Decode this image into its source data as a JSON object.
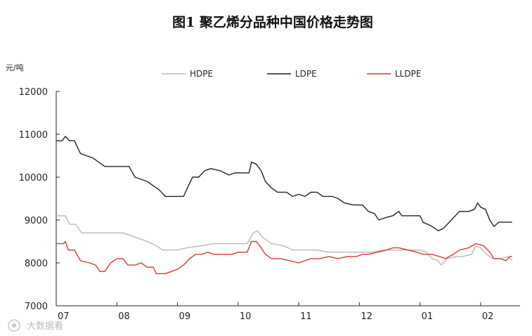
{
  "chart_data": {
    "type": "line",
    "title": "图1    聚乙烯分品种中国价格走势图",
    "ylabel": "元/吨",
    "xlabel": "",
    "ylim": [
      7000,
      12000
    ],
    "yticks": [
      7000,
      8000,
      9000,
      10000,
      11000,
      12000
    ],
    "xlim": [
      0,
      7.65
    ],
    "xticks": [
      {
        "x": 0,
        "label": "07"
      },
      {
        "x": 1,
        "label": "08"
      },
      {
        "x": 2,
        "label": "09"
      },
      {
        "x": 3,
        "label": "10"
      },
      {
        "x": 4,
        "label": "11"
      },
      {
        "x": 5,
        "label": "12"
      },
      {
        "x": 6,
        "label": "01"
      },
      {
        "x": 7,
        "label": "02"
      }
    ],
    "legend_position": "top",
    "watermark": "大数据看",
    "series": [
      {
        "name": "HDPE",
        "color": "#b8b8b8",
        "points": [
          [
            0.0,
            9100
          ],
          [
            0.15,
            9100
          ],
          [
            0.22,
            8900
          ],
          [
            0.32,
            8900
          ],
          [
            0.42,
            8700
          ],
          [
            0.6,
            8700
          ],
          [
            0.9,
            8700
          ],
          [
            1.1,
            8700
          ],
          [
            1.3,
            8600
          ],
          [
            1.5,
            8500
          ],
          [
            1.65,
            8400
          ],
          [
            1.75,
            8300
          ],
          [
            2.0,
            8300
          ],
          [
            2.15,
            8350
          ],
          [
            2.4,
            8400
          ],
          [
            2.6,
            8450
          ],
          [
            2.8,
            8450
          ],
          [
            3.0,
            8450
          ],
          [
            3.15,
            8450
          ],
          [
            3.25,
            8700
          ],
          [
            3.32,
            8750
          ],
          [
            3.4,
            8600
          ],
          [
            3.55,
            8450
          ],
          [
            3.75,
            8400
          ],
          [
            3.9,
            8300
          ],
          [
            4.1,
            8300
          ],
          [
            4.3,
            8300
          ],
          [
            4.5,
            8250
          ],
          [
            4.8,
            8250
          ],
          [
            5.0,
            8250
          ],
          [
            5.2,
            8250
          ],
          [
            5.4,
            8300
          ],
          [
            5.6,
            8300
          ],
          [
            5.8,
            8300
          ],
          [
            6.0,
            8300
          ],
          [
            6.1,
            8250
          ],
          [
            6.2,
            8100
          ],
          [
            6.3,
            8050
          ],
          [
            6.35,
            7950
          ],
          [
            6.45,
            8100
          ],
          [
            6.6,
            8150
          ],
          [
            6.7,
            8150
          ],
          [
            6.85,
            8200
          ],
          [
            6.92,
            8400
          ],
          [
            7.0,
            8350
          ],
          [
            7.1,
            8200
          ],
          [
            7.2,
            8100
          ],
          [
            7.35,
            8100
          ],
          [
            7.45,
            8150
          ],
          [
            7.52,
            8050
          ]
        ]
      },
      {
        "name": "LDPE",
        "color": "#222222",
        "points": [
          [
            0.0,
            10850
          ],
          [
            0.1,
            10850
          ],
          [
            0.15,
            10950
          ],
          [
            0.22,
            10850
          ],
          [
            0.3,
            10850
          ],
          [
            0.4,
            10550
          ],
          [
            0.5,
            10500
          ],
          [
            0.6,
            10450
          ],
          [
            0.7,
            10350
          ],
          [
            0.8,
            10250
          ],
          [
            0.95,
            10250
          ],
          [
            1.1,
            10250
          ],
          [
            1.2,
            10250
          ],
          [
            1.3,
            10000
          ],
          [
            1.4,
            9950
          ],
          [
            1.5,
            9900
          ],
          [
            1.6,
            9800
          ],
          [
            1.7,
            9700
          ],
          [
            1.8,
            9550
          ],
          [
            2.0,
            9550
          ],
          [
            2.1,
            9550
          ],
          [
            2.18,
            9800
          ],
          [
            2.25,
            10000
          ],
          [
            2.35,
            10000
          ],
          [
            2.45,
            10150
          ],
          [
            2.55,
            10200
          ],
          [
            2.7,
            10150
          ],
          [
            2.85,
            10050
          ],
          [
            2.95,
            10100
          ],
          [
            3.05,
            10100
          ],
          [
            3.18,
            10100
          ],
          [
            3.22,
            10350
          ],
          [
            3.3,
            10300
          ],
          [
            3.38,
            10150
          ],
          [
            3.45,
            9900
          ],
          [
            3.55,
            9750
          ],
          [
            3.65,
            9650
          ],
          [
            3.8,
            9650
          ],
          [
            3.9,
            9550
          ],
          [
            4.0,
            9600
          ],
          [
            4.1,
            9550
          ],
          [
            4.2,
            9650
          ],
          [
            4.3,
            9650
          ],
          [
            4.4,
            9550
          ],
          [
            4.55,
            9550
          ],
          [
            4.65,
            9500
          ],
          [
            4.75,
            9400
          ],
          [
            4.9,
            9350
          ],
          [
            5.05,
            9350
          ],
          [
            5.15,
            9200
          ],
          [
            5.25,
            9150
          ],
          [
            5.32,
            9000
          ],
          [
            5.42,
            9050
          ],
          [
            5.55,
            9100
          ],
          [
            5.65,
            9200
          ],
          [
            5.7,
            9100
          ],
          [
            5.9,
            9100
          ],
          [
            6.0,
            9100
          ],
          [
            6.05,
            8950
          ],
          [
            6.2,
            8850
          ],
          [
            6.3,
            8750
          ],
          [
            6.38,
            8800
          ],
          [
            6.45,
            8900
          ],
          [
            6.55,
            9050
          ],
          [
            6.65,
            9200
          ],
          [
            6.8,
            9200
          ],
          [
            6.9,
            9250
          ],
          [
            6.95,
            9400
          ],
          [
            7.0,
            9300
          ],
          [
            7.08,
            9250
          ],
          [
            7.15,
            9000
          ],
          [
            7.22,
            8850
          ],
          [
            7.3,
            8950
          ],
          [
            7.45,
            8950
          ],
          [
            7.52,
            8950
          ]
        ]
      },
      {
        "name": "LLDPE",
        "color": "#d63a2f",
        "points": [
          [
            0.0,
            8450
          ],
          [
            0.12,
            8450
          ],
          [
            0.15,
            8500
          ],
          [
            0.2,
            8300
          ],
          [
            0.3,
            8300
          ],
          [
            0.4,
            8050
          ],
          [
            0.55,
            8000
          ],
          [
            0.65,
            7950
          ],
          [
            0.72,
            7800
          ],
          [
            0.8,
            7800
          ],
          [
            0.9,
            8000
          ],
          [
            1.0,
            8100
          ],
          [
            1.1,
            8100
          ],
          [
            1.18,
            7950
          ],
          [
            1.3,
            7950
          ],
          [
            1.4,
            8000
          ],
          [
            1.5,
            7900
          ],
          [
            1.6,
            7900
          ],
          [
            1.65,
            7750
          ],
          [
            1.8,
            7750
          ],
          [
            1.9,
            7800
          ],
          [
            2.0,
            7850
          ],
          [
            2.1,
            7950
          ],
          [
            2.2,
            8100
          ],
          [
            2.3,
            8200
          ],
          [
            2.4,
            8200
          ],
          [
            2.5,
            8250
          ],
          [
            2.6,
            8200
          ],
          [
            2.75,
            8200
          ],
          [
            2.9,
            8200
          ],
          [
            3.0,
            8250
          ],
          [
            3.15,
            8250
          ],
          [
            3.22,
            8500
          ],
          [
            3.3,
            8500
          ],
          [
            3.38,
            8350
          ],
          [
            3.45,
            8200
          ],
          [
            3.55,
            8100
          ],
          [
            3.7,
            8100
          ],
          [
            3.85,
            8050
          ],
          [
            4.0,
            8000
          ],
          [
            4.1,
            8050
          ],
          [
            4.2,
            8100
          ],
          [
            4.35,
            8100
          ],
          [
            4.5,
            8150
          ],
          [
            4.65,
            8100
          ],
          [
            4.8,
            8150
          ],
          [
            4.95,
            8150
          ],
          [
            5.05,
            8200
          ],
          [
            5.15,
            8200
          ],
          [
            5.3,
            8250
          ],
          [
            5.45,
            8300
          ],
          [
            5.55,
            8350
          ],
          [
            5.65,
            8350
          ],
          [
            5.8,
            8300
          ],
          [
            5.95,
            8250
          ],
          [
            6.05,
            8200
          ],
          [
            6.2,
            8200
          ],
          [
            6.32,
            8150
          ],
          [
            6.42,
            8100
          ],
          [
            6.55,
            8200
          ],
          [
            6.65,
            8300
          ],
          [
            6.8,
            8350
          ],
          [
            6.92,
            8450
          ],
          [
            7.05,
            8400
          ],
          [
            7.15,
            8250
          ],
          [
            7.22,
            8100
          ],
          [
            7.32,
            8100
          ],
          [
            7.42,
            8050
          ],
          [
            7.48,
            8150
          ],
          [
            7.52,
            8150
          ]
        ]
      }
    ]
  }
}
